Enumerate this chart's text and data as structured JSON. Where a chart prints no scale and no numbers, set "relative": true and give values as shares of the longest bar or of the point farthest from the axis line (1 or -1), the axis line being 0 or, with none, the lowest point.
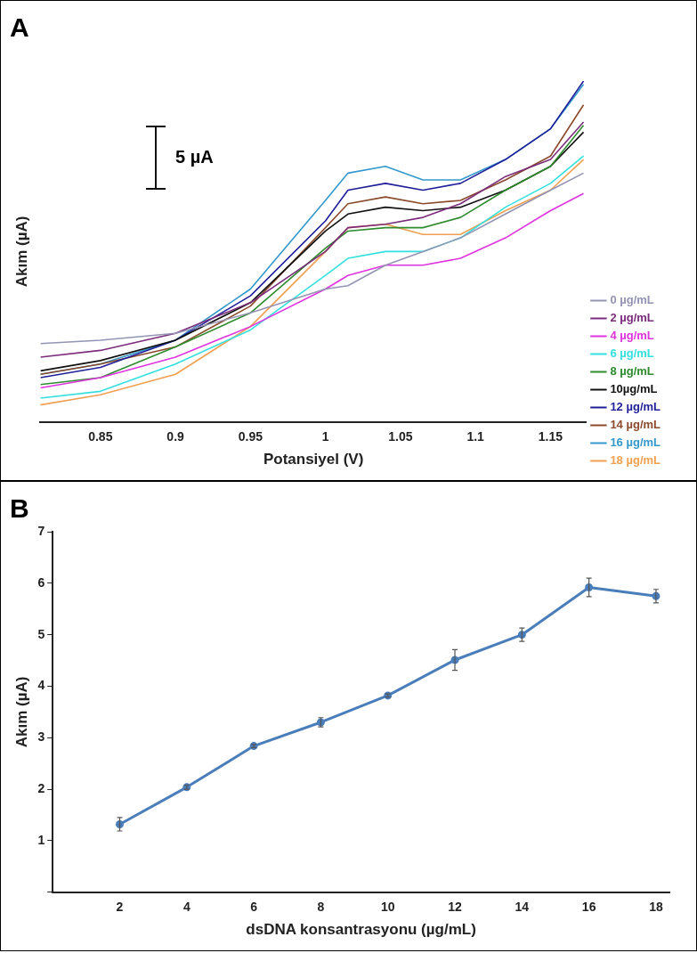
{
  "chart_data": [
    {
      "type": "line",
      "title": "A",
      "xlabel": "Potansiyel (V)",
      "ylabel": "Akım (µA)",
      "relative": true,
      "annotations": [
        "5 µA"
      ],
      "legend": "right",
      "grid": false,
      "marker": "none",
      "x": [
        0.81,
        0.85,
        0.9,
        0.95,
        1.0,
        1.015,
        1.04,
        1.065,
        1.09,
        1.12,
        1.15,
        1.172
      ],
      "xlim": [
        0.81,
        1.174
      ],
      "xticks": [
        0.85,
        0.9,
        0.95,
        1,
        1.05,
        1.1,
        1.15
      ],
      "series": [
        {
          "name": "0 µg/mL",
          "color": "#9494b4",
          "values": [
            0.23,
            0.24,
            0.26,
            0.32,
            0.39,
            0.4,
            0.46,
            0.5,
            0.54,
            0.61,
            0.68,
            0.73
          ]
        },
        {
          "name": "2 µg/mL",
          "color": "#7b2c7b",
          "values": [
            0.19,
            0.21,
            0.26,
            0.35,
            0.5,
            0.57,
            0.58,
            0.6,
            0.64,
            0.72,
            0.77,
            0.88
          ]
        },
        {
          "name": "4 µg/mL",
          "color": "#e033e0",
          "values": [
            0.1,
            0.13,
            0.19,
            0.28,
            0.39,
            0.43,
            0.46,
            0.46,
            0.48,
            0.54,
            0.62,
            0.67
          ]
        },
        {
          "name": "6 µg/mL",
          "color": "#33e0e0",
          "values": [
            0.07,
            0.09,
            0.17,
            0.27,
            0.43,
            0.48,
            0.5,
            0.5,
            0.54,
            0.63,
            0.7,
            0.78
          ]
        },
        {
          "name": "8 µg/mL",
          "color": "#2e8b2e",
          "values": [
            0.11,
            0.13,
            0.22,
            0.32,
            0.51,
            0.56,
            0.57,
            0.57,
            0.6,
            0.68,
            0.75,
            0.87
          ]
        },
        {
          "name": "10µg/mL",
          "color": "#111111",
          "values": [
            0.15,
            0.18,
            0.24,
            0.35,
            0.56,
            0.61,
            0.63,
            0.62,
            0.63,
            0.68,
            0.75,
            0.85
          ]
        },
        {
          "name": "12 µg/mL",
          "color": "#1f1f99",
          "values": [
            0.13,
            0.16,
            0.24,
            0.37,
            0.59,
            0.68,
            0.7,
            0.68,
            0.7,
            0.77,
            0.86,
            1.0
          ]
        },
        {
          "name": "14 µg/mL",
          "color": "#8b4a2b",
          "values": [
            0.14,
            0.17,
            0.22,
            0.34,
            0.57,
            0.64,
            0.66,
            0.64,
            0.65,
            0.71,
            0.78,
            0.93
          ]
        },
        {
          "name": "16 µg/mL",
          "color": "#3399cc",
          "values": [
            0.14,
            0.17,
            0.24,
            0.39,
            0.65,
            0.73,
            0.75,
            0.71,
            0.71,
            0.77,
            0.86,
            0.99
          ]
        },
        {
          "name": "18 µg/mL",
          "color": "#f0a050",
          "values": [
            0.05,
            0.08,
            0.14,
            0.28,
            0.5,
            0.57,
            0.58,
            0.55,
            0.55,
            0.62,
            0.68,
            0.77
          ]
        }
      ]
    },
    {
      "type": "line",
      "title": "B",
      "xlabel": "dsDNA konsantrasyonu (µg/mL)",
      "ylabel": "Akım (µA)",
      "grid": false,
      "marker": "circle",
      "color": "#4a7ebb",
      "x": [
        2,
        4,
        6,
        8,
        10,
        12,
        14,
        16,
        18
      ],
      "values": [
        1.32,
        2.04,
        2.84,
        3.3,
        3.82,
        4.51,
        5.0,
        5.92,
        5.75
      ],
      "errors": [
        0.13,
        0.04,
        0.03,
        0.09,
        0.03,
        0.2,
        0.13,
        0.18,
        0.13
      ],
      "xlim": [
        0,
        18.4
      ],
      "xticks": [
        2,
        4,
        6,
        8,
        10,
        12,
        14,
        16,
        18
      ],
      "ylim": [
        0,
        7
      ],
      "yticks": [
        {
          "value": 0,
          "label": null
        },
        1,
        2,
        3,
        4,
        5,
        6,
        7
      ]
    }
  ]
}
